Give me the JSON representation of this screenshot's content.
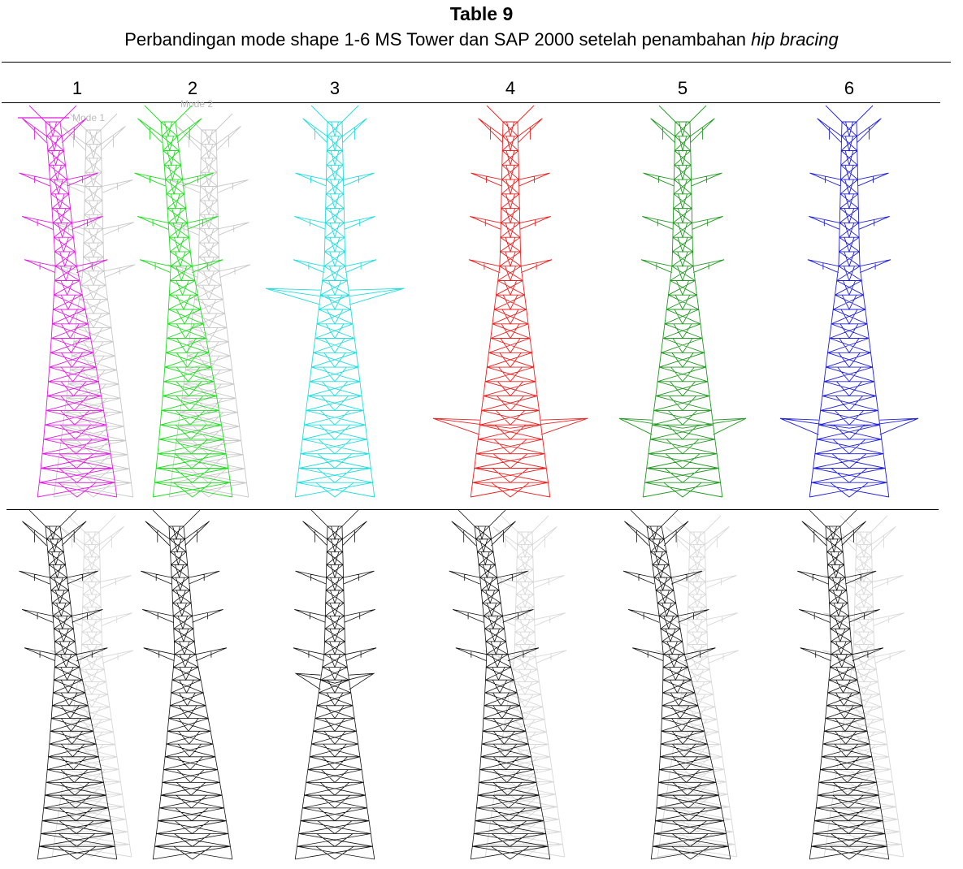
{
  "header": {
    "title": "Table 9",
    "caption": "Perbandingan mode shape 1-6 MS Tower dan SAP 2000 setelah penambahan ",
    "caption_italic": "hip bracing"
  },
  "table": {
    "columns": [
      "1",
      "2",
      "3",
      "4",
      "5",
      "6"
    ],
    "legend": [
      "Mode 1",
      "Mode 2"
    ]
  }
}
